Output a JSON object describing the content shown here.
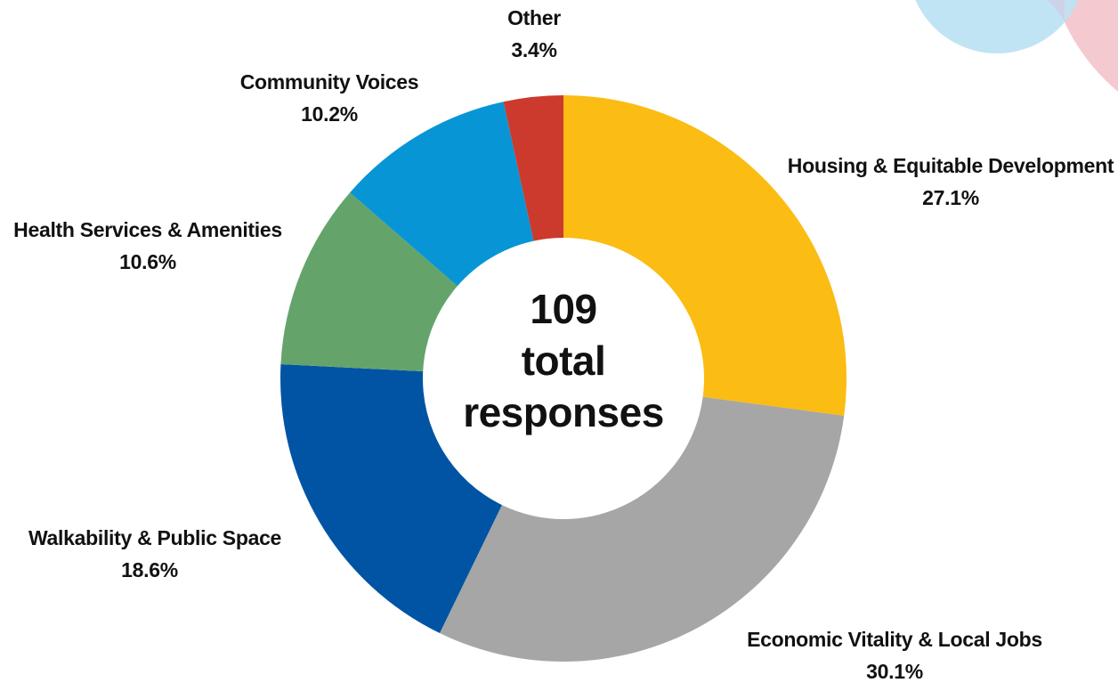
{
  "chart_data": {
    "type": "pie",
    "variant": "donut",
    "center_label": {
      "total": "109",
      "line2": "total",
      "line3": "responses"
    },
    "slices": [
      {
        "name": "Housing & Equitable Development",
        "value": 27.1,
        "label": "27.1%",
        "color": "#FBBC13"
      },
      {
        "name": "Economic Vitality & Local Jobs",
        "value": 30.1,
        "label": "30.1%",
        "color": "#A6A6A6"
      },
      {
        "name": "Walkability & Public Space",
        "value": 18.6,
        "label": "18.6%",
        "color": "#0054A3"
      },
      {
        "name": "Health Services & Amenities",
        "value": 10.6,
        "label": "10.6%",
        "color": "#64A46B"
      },
      {
        "name": "Community Voices",
        "value": 10.2,
        "label": "10.2%",
        "color": "#0895D5"
      },
      {
        "name": "Other",
        "value": 3.4,
        "label": "3.4%",
        "color": "#CB3A2D"
      }
    ],
    "start_angle": "12 o'clock",
    "direction": "clockwise",
    "legend": "none"
  },
  "decoration": {
    "corner_circle_colors": [
      "#BEE3F3",
      "#F4C9CF",
      "#D6C8E3"
    ]
  }
}
